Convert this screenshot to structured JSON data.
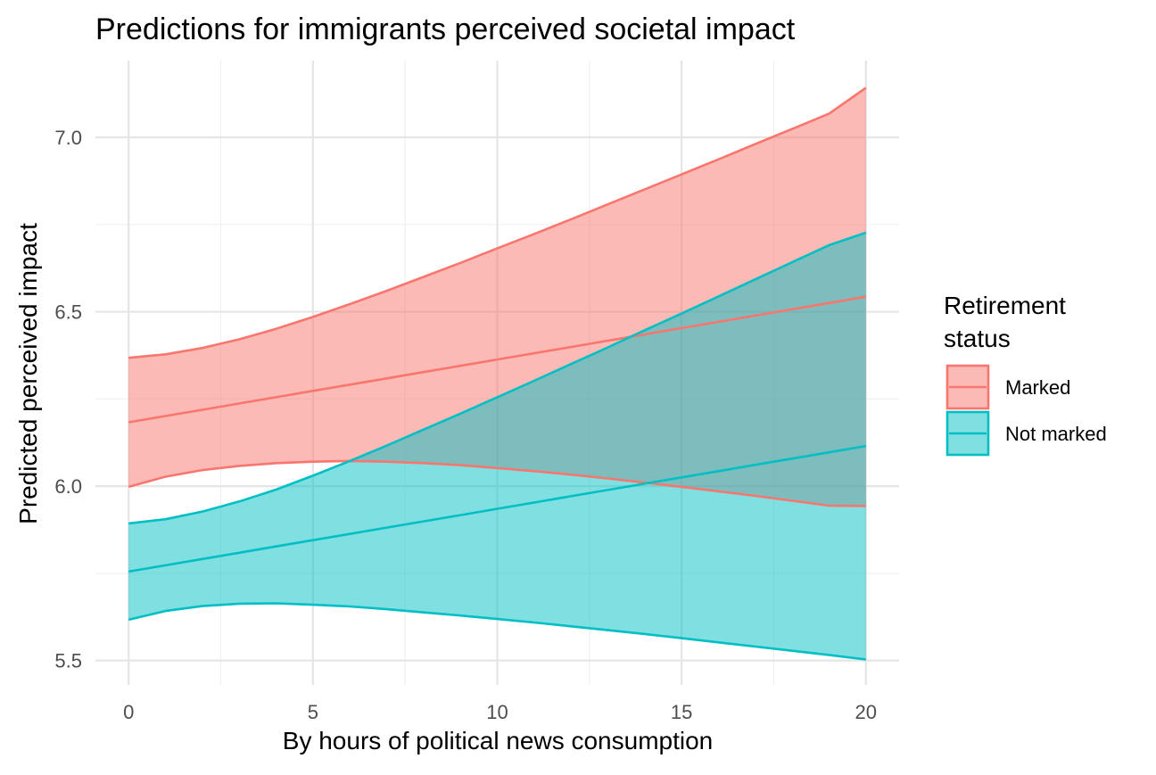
{
  "chart_data": {
    "type": "line",
    "title": "Predictions for immigrants perceived societal impact",
    "xlabel": "By hours of political news consumption",
    "ylabel": "Predicted perceived impact",
    "xlim": [
      -0.9,
      20.9
    ],
    "ylim": [
      5.43,
      7.22
    ],
    "x_ticks": [
      0,
      5,
      10,
      15,
      20
    ],
    "x_tick_labels": [
      "0",
      "5",
      "10",
      "15",
      "20"
    ],
    "y_ticks": [
      5.5,
      6.0,
      6.5,
      7.0
    ],
    "y_tick_labels": [
      "5.5",
      "6.0",
      "6.5",
      "7.0"
    ],
    "grid": true,
    "legend": {
      "title": "Retirement status",
      "title_lines": [
        "Retirement",
        "status"
      ],
      "placement": "right"
    },
    "x": [
      0,
      1,
      2,
      3,
      4,
      5,
      6,
      7,
      8,
      9,
      10,
      11,
      12,
      13,
      14,
      15,
      16,
      17,
      18,
      19,
      20
    ],
    "series": [
      {
        "name": "Marked",
        "color": "#F8766D",
        "fit": [
          6.183,
          6.201,
          6.219,
          6.237,
          6.255,
          6.273,
          6.291,
          6.309,
          6.327,
          6.345,
          6.363,
          6.381,
          6.399,
          6.417,
          6.435,
          6.453,
          6.471,
          6.489,
          6.507,
          6.525,
          6.543
        ],
        "lower": [
          5.998,
          6.027,
          6.046,
          6.058,
          6.066,
          6.07,
          6.072,
          6.07,
          6.066,
          6.06,
          6.052,
          6.043,
          6.033,
          6.022,
          6.01,
          5.998,
          5.985,
          5.972,
          5.958,
          5.944,
          5.943
        ],
        "upper": [
          6.368,
          6.378,
          6.396,
          6.421,
          6.451,
          6.485,
          6.522,
          6.56,
          6.6,
          6.64,
          6.682,
          6.723,
          6.765,
          6.808,
          6.851,
          6.894,
          6.937,
          6.981,
          7.024,
          7.068,
          7.142
        ]
      },
      {
        "name": "Not marked",
        "color": "#00BFC4",
        "fit": [
          5.755,
          5.773,
          5.791,
          5.809,
          5.827,
          5.845,
          5.863,
          5.881,
          5.899,
          5.917,
          5.935,
          5.953,
          5.971,
          5.989,
          6.007,
          6.025,
          6.043,
          6.061,
          6.079,
          6.097,
          6.115
        ],
        "lower": [
          5.617,
          5.642,
          5.656,
          5.663,
          5.664,
          5.66,
          5.655,
          5.647,
          5.638,
          5.629,
          5.619,
          5.609,
          5.598,
          5.587,
          5.576,
          5.564,
          5.552,
          5.54,
          5.528,
          5.516,
          5.503
        ],
        "upper": [
          5.893,
          5.905,
          5.927,
          5.956,
          5.99,
          6.03,
          6.072,
          6.116,
          6.162,
          6.208,
          6.255,
          6.302,
          6.35,
          6.398,
          6.447,
          6.495,
          6.544,
          6.593,
          6.642,
          6.691,
          6.727
        ]
      }
    ]
  }
}
